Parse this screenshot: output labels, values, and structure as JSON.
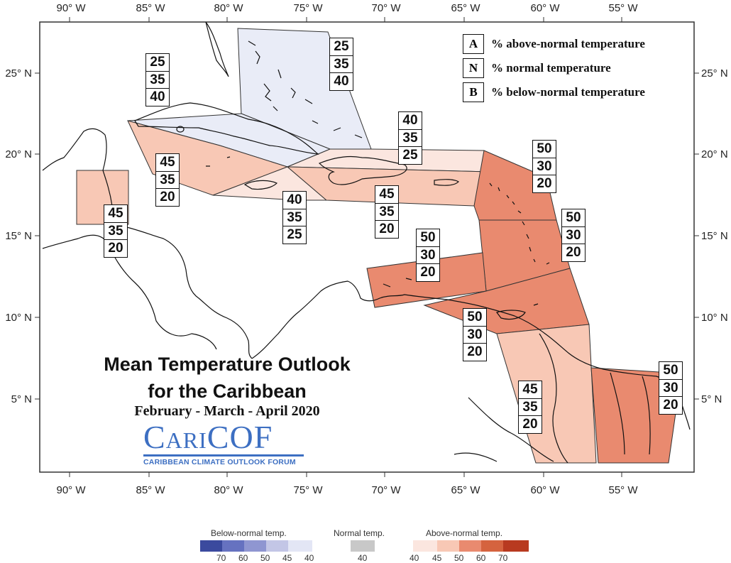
{
  "map_title": {
    "line1": "Mean Temperature Outlook",
    "line2": "for the Caribbean",
    "period": "February - March - April 2020"
  },
  "logo": {
    "name": "CariCOF",
    "subtitle": "CARIBBEAN CLIMATE OUTLOOK FORUM"
  },
  "axes": {
    "lon_labels": [
      "90° W",
      "85° W",
      "80° W",
      "75° W",
      "70° W",
      "65° W",
      "60° W",
      "55° W"
    ],
    "lat_labels": [
      "25° N",
      "20° N",
      "15° N",
      "10° N",
      "5° N"
    ]
  },
  "key": [
    {
      "letter": "A",
      "text": "% above-normal temperature"
    },
    {
      "letter": "N",
      "text": "% normal temperature"
    },
    {
      "letter": "B",
      "text": "% below-normal temperature"
    }
  ],
  "colors": {
    "below40": "#e9ecf7",
    "above40": "#fbe6df",
    "above45": "#f8c8b5",
    "above50": "#e98a6f",
    "land": "#ffffff",
    "border": "#222222"
  },
  "regions": [
    {
      "id": "bahamas",
      "A": "25",
      "N": "35",
      "B": "40",
      "category": "below40"
    },
    {
      "id": "cuba",
      "A": "25",
      "N": "35",
      "B": "40",
      "category": "below40"
    },
    {
      "id": "cayman",
      "A": "45",
      "N": "35",
      "B": "20",
      "category": "above45"
    },
    {
      "id": "jamaica",
      "A": "40",
      "N": "35",
      "B": "25",
      "category": "above40"
    },
    {
      "id": "turks-caicos",
      "A": "40",
      "N": "35",
      "B": "25",
      "category": "above40"
    },
    {
      "id": "hispaniola-pr",
      "A": "45",
      "N": "35",
      "B": "20",
      "category": "above45"
    },
    {
      "id": "belize",
      "A": "45",
      "N": "35",
      "B": "20",
      "category": "above45"
    },
    {
      "id": "leeward",
      "A": "50",
      "N": "30",
      "B": "20",
      "category": "above50"
    },
    {
      "id": "windward",
      "A": "50",
      "N": "30",
      "B": "20",
      "category": "above50"
    },
    {
      "id": "abc-islands",
      "A": "50",
      "N": "30",
      "B": "20",
      "category": "above50"
    },
    {
      "id": "trinidad-barbados",
      "A": "50",
      "N": "30",
      "B": "20",
      "category": "above50"
    },
    {
      "id": "guyana",
      "A": "45",
      "N": "35",
      "B": "20",
      "category": "above45"
    },
    {
      "id": "suriname-fg",
      "A": "50",
      "N": "30",
      "B": "20",
      "category": "above50"
    }
  ],
  "colorbar": {
    "below_title": "Below-normal temp.",
    "normal_title": "Normal temp.",
    "above_title": "Above-normal temp.",
    "below_colors": [
      "#3b4a9e",
      "#6672c0",
      "#8f96d1",
      "#c3c6e6",
      "#e3e6f5"
    ],
    "below_labels": [
      "70",
      "60",
      "50",
      "45",
      "40"
    ],
    "normal_color": "#c8c8c8",
    "normal_label": "40",
    "above_colors": [
      "#fbe6df",
      "#f8c8b5",
      "#e98a6f",
      "#d5633f",
      "#b83a20"
    ],
    "above_labels": [
      "40",
      "45",
      "50",
      "60",
      "70"
    ]
  }
}
